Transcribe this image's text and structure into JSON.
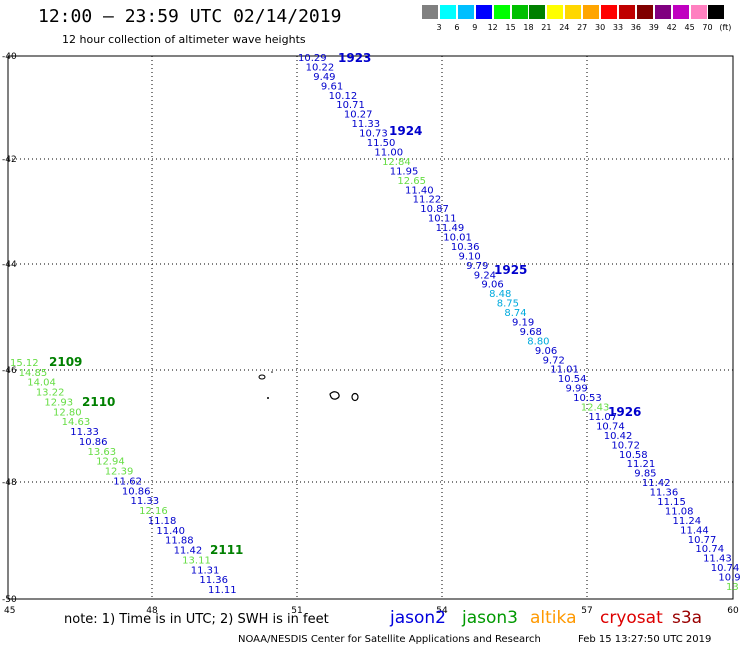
{
  "header": {
    "title": "12:00 — 23:59 UTC 02/14/2019",
    "subtitle": "12 hour collection of altimeter wave heights"
  },
  "legend": {
    "colors": [
      "#808080",
      "#00ffff",
      "#00bfff",
      "#0000ff",
      "#00ff00",
      "#00c000",
      "#008000",
      "#ffff00",
      "#ffd700",
      "#ffa500",
      "#ff0000",
      "#c00000",
      "#800000",
      "#800080",
      "#c000c0",
      "#ff80c0",
      "#000000"
    ],
    "labels": [
      "3",
      "6",
      "9",
      "12",
      "15",
      "18",
      "21",
      "24",
      "27",
      "30",
      "33",
      "36",
      "39",
      "42",
      "45",
      "70",
      "(ft)"
    ]
  },
  "map": {
    "lat_ticks": [
      "-40",
      "-42",
      "-44",
      "-46",
      "-48",
      "-50"
    ],
    "lon_ticks": [
      "45",
      "48",
      "51",
      "54",
      "57",
      "60"
    ],
    "tracks": [
      {
        "id": "1923",
        "color": "#0000cc"
      },
      {
        "id": "1924",
        "color": "#0000cc"
      },
      {
        "id": "1925",
        "color": "#0000cc"
      },
      {
        "id": "1926",
        "color": "#0000cc"
      },
      {
        "id": "2109",
        "color": "#008000"
      },
      {
        "id": "2110",
        "color": "#008000"
      },
      {
        "id": "2111",
        "color": "#008000"
      }
    ],
    "pass_a": [
      {
        "v": "10.29",
        "c": "#0000cc"
      },
      {
        "v": "10.22",
        "c": "#0000cc"
      },
      {
        "v": "9.49",
        "c": "#0000cc"
      },
      {
        "v": "9.61",
        "c": "#0000cc"
      },
      {
        "v": "10.12",
        "c": "#0000cc"
      },
      {
        "v": "10.71",
        "c": "#0000cc"
      },
      {
        "v": "10.27",
        "c": "#0000cc"
      },
      {
        "v": "11.33",
        "c": "#0000cc"
      },
      {
        "v": "10.73",
        "c": "#0000cc"
      },
      {
        "v": "11.50",
        "c": "#0000cc"
      },
      {
        "v": "11.00",
        "c": "#0000cc"
      },
      {
        "v": "12.84",
        "c": "#66dd44"
      },
      {
        "v": "11.95",
        "c": "#0000cc"
      },
      {
        "v": "12.65",
        "c": "#66dd44"
      },
      {
        "v": "11.40",
        "c": "#0000cc"
      },
      {
        "v": "11.22",
        "c": "#0000cc"
      },
      {
        "v": "10.87",
        "c": "#0000cc"
      },
      {
        "v": "10.11",
        "c": "#0000cc"
      },
      {
        "v": "11.49",
        "c": "#0000cc"
      },
      {
        "v": "10.01",
        "c": "#0000cc"
      },
      {
        "v": "10.36",
        "c": "#0000cc"
      },
      {
        "v": "9.10",
        "c": "#0000cc"
      },
      {
        "v": "9.79",
        "c": "#0000cc"
      },
      {
        "v": "9.24",
        "c": "#0000cc"
      },
      {
        "v": "9.06",
        "c": "#0000cc"
      },
      {
        "v": "8.48",
        "c": "#00aadd"
      },
      {
        "v": "8.75",
        "c": "#00aadd"
      },
      {
        "v": "8.74",
        "c": "#00aadd"
      },
      {
        "v": "9.19",
        "c": "#0000cc"
      },
      {
        "v": "9.68",
        "c": "#0000cc"
      },
      {
        "v": "8.80",
        "c": "#00aadd"
      },
      {
        "v": "9.06",
        "c": "#0000cc"
      },
      {
        "v": "9.72",
        "c": "#0000cc"
      },
      {
        "v": "11.01",
        "c": "#0000cc"
      },
      {
        "v": "10.54",
        "c": "#0000cc"
      },
      {
        "v": "9.99",
        "c": "#0000cc"
      },
      {
        "v": "10.53",
        "c": "#0000cc"
      },
      {
        "v": "12.43",
        "c": "#66dd44"
      },
      {
        "v": "11.07",
        "c": "#0000cc"
      },
      {
        "v": "10.74",
        "c": "#0000cc"
      },
      {
        "v": "10.42",
        "c": "#0000cc"
      },
      {
        "v": "10.72",
        "c": "#0000cc"
      },
      {
        "v": "10.58",
        "c": "#0000cc"
      },
      {
        "v": "11.21",
        "c": "#0000cc"
      },
      {
        "v": "9.85",
        "c": "#0000cc"
      },
      {
        "v": "11.42",
        "c": "#0000cc"
      },
      {
        "v": "11.36",
        "c": "#0000cc"
      },
      {
        "v": "11.15",
        "c": "#0000cc"
      },
      {
        "v": "11.08",
        "c": "#0000cc"
      },
      {
        "v": "11.24",
        "c": "#0000cc"
      },
      {
        "v": "11.44",
        "c": "#0000cc"
      },
      {
        "v": "10.77",
        "c": "#0000cc"
      },
      {
        "v": "10.74",
        "c": "#0000cc"
      },
      {
        "v": "11.43",
        "c": "#0000cc"
      },
      {
        "v": "10.74",
        "c": "#0000cc"
      },
      {
        "v": "10.9",
        "c": "#0000cc"
      },
      {
        "v": "13",
        "c": "#66dd44"
      }
    ],
    "pass_b": [
      {
        "v": "15.12",
        "c": "#66dd44"
      },
      {
        "v": "14.85",
        "c": "#66dd44"
      },
      {
        "v": "14.04",
        "c": "#66dd44"
      },
      {
        "v": "13.22",
        "c": "#66dd44"
      },
      {
        "v": "12.93",
        "c": "#66dd44"
      },
      {
        "v": "12.80",
        "c": "#66dd44"
      },
      {
        "v": "14.63",
        "c": "#66dd44"
      },
      {
        "v": "11.33",
        "c": "#0000cc"
      },
      {
        "v": "10.86",
        "c": "#0000cc"
      },
      {
        "v": "13.63",
        "c": "#66dd44"
      },
      {
        "v": "12.94",
        "c": "#66dd44"
      },
      {
        "v": "12.39",
        "c": "#66dd44"
      },
      {
        "v": "11.62",
        "c": "#0000cc"
      },
      {
        "v": "10.86",
        "c": "#0000cc"
      },
      {
        "v": "11.33",
        "c": "#0000cc"
      },
      {
        "v": "12.16",
        "c": "#66dd44"
      },
      {
        "v": "11.18",
        "c": "#0000cc"
      },
      {
        "v": "11.40",
        "c": "#0000cc"
      },
      {
        "v": "11.88",
        "c": "#0000cc"
      },
      {
        "v": "11.42",
        "c": "#0000cc"
      },
      {
        "v": "13.11",
        "c": "#66dd44"
      },
      {
        "v": "11.31",
        "c": "#0000cc"
      },
      {
        "v": "11.36",
        "c": "#0000cc"
      },
      {
        "v": "11.11",
        "c": "#0000cc"
      }
    ]
  },
  "footer": {
    "note": "note:  1) Time is in UTC;  2) SWH is in feet",
    "satellites": [
      {
        "label": "jason2",
        "color": "#0000dd"
      },
      {
        "label": "jason3",
        "color": "#009900"
      },
      {
        "label": "altika",
        "color": "#ff9900"
      },
      {
        "label": "cryosat",
        "color": "#dd0000"
      },
      {
        "label": "s3a",
        "color": "#990000"
      }
    ],
    "credit": "NOAA/NESDIS Center for Satellite Applications and Research",
    "timestamp": "Feb 15 13:27:50 UTC 2019"
  }
}
